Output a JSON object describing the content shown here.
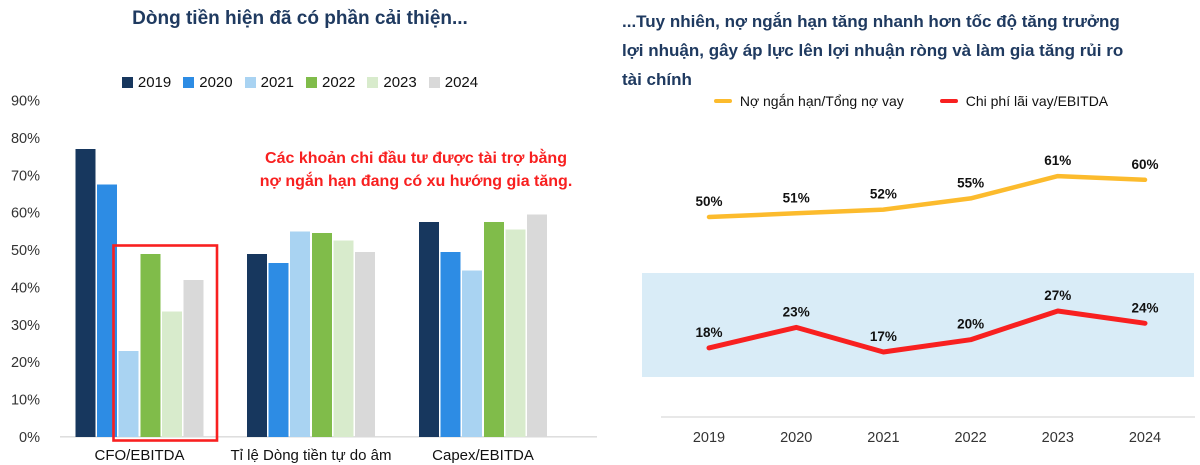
{
  "colors": {
    "title_navy": "#1F3A60",
    "annotation_red": "#F82020",
    "axis_gray": "#D9D9D9",
    "band_blue": "#D9ECF7"
  },
  "chart_data": [
    {
      "type": "bar",
      "title": "Dòng tiền hiện đã có phần cải thiện...",
      "annotation": "Các khoản chi đầu tư được tài trợ bằng nợ ngắn hạn đang có xu hướng gia tăng.",
      "categories": [
        "CFO/EBITDA",
        "Tỉ lệ Dòng tiền tự do âm",
        "Capex/EBITDA"
      ],
      "series": [
        {
          "name": "2019",
          "color": "#17375E",
          "values": [
            77,
            49,
            57.5
          ]
        },
        {
          "name": "2020",
          "color": "#2D8CE4",
          "values": [
            67.5,
            46.5,
            49.5
          ]
        },
        {
          "name": "2021",
          "color": "#A9D3F2",
          "values": [
            23,
            55,
            44.5
          ]
        },
        {
          "name": "2022",
          "color": "#80BC4A",
          "values": [
            49,
            54.5,
            57.5
          ]
        },
        {
          "name": "2023",
          "color": "#D8EBCC",
          "values": [
            33.5,
            52.5,
            55.5
          ]
        },
        {
          "name": "2024",
          "color": "#D9D9D9",
          "values": [
            42,
            49.5,
            59.5
          ]
        }
      ],
      "ylim": [
        0,
        90
      ],
      "yticks": [
        "0%",
        "10%",
        "20%",
        "30%",
        "40%",
        "50%",
        "60%",
        "70%",
        "80%",
        "90%"
      ],
      "grid": false,
      "legend_position": "top",
      "highlight_box": {
        "category": "CFO/EBITDA",
        "series": [
          "2021",
          "2022",
          "2023",
          "2024"
        ],
        "color": "#F82020"
      }
    },
    {
      "type": "line",
      "title": "...Tuy nhiên, nợ ngắn hạn tăng nhanh hơn tốc độ tăng trưởng lợi nhuận, gây áp lực lên lợi nhuận ròng và làm gia tăng rủi ro tài chính",
      "title_lines": [
        "...Tuy nhiên, nợ ngắn hạn tăng nhanh hơn tốc độ tăng trưởng",
        "lợi nhuận, gây áp lực lên lợi nhuận ròng và làm gia tăng rủi ro",
        "tài chính"
      ],
      "categories": [
        "2019",
        "2020",
        "2021",
        "2022",
        "2023",
        "2024"
      ],
      "series": [
        {
          "name": "Nợ ngắn hạn/Tổng nợ vay",
          "color": "#FCBB2D",
          "values": [
            50,
            51,
            52,
            55,
            61,
            60
          ]
        },
        {
          "name": "Chi phí lãi vay/EBITDA",
          "color": "#F82020",
          "values": [
            18,
            23,
            17,
            20,
            27,
            24
          ]
        }
      ],
      "label_format": "percent",
      "grid": false,
      "legend_position": "top",
      "band_color": "#D9ECF7"
    }
  ]
}
